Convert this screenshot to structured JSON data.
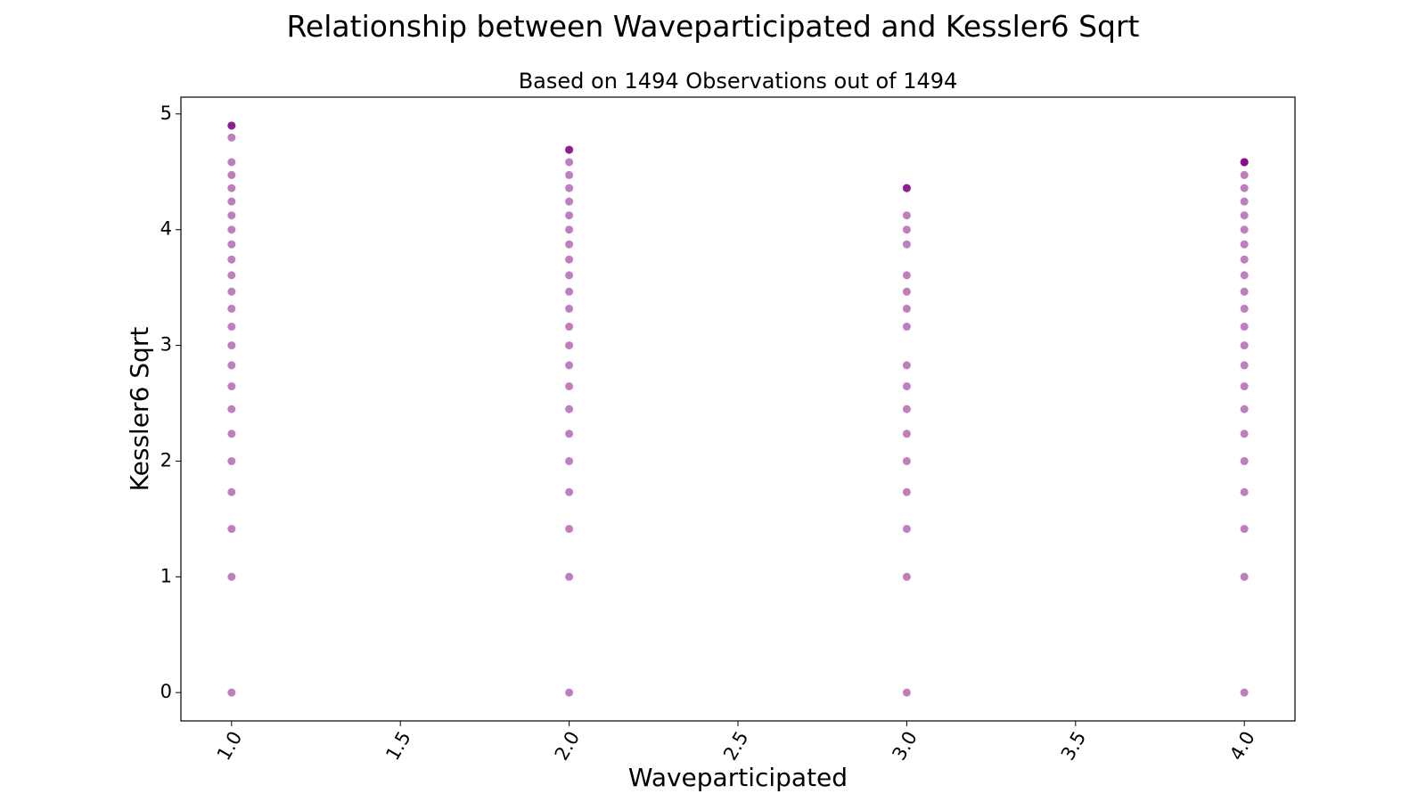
{
  "chart_data": {
    "type": "scatter",
    "title": "Relationship between Waveparticipated and Kessler6 Sqrt",
    "subtitle": "Based on 1494 Observations out of 1494",
    "xlabel": "Waveparticipated",
    "ylabel": "Kessler6 Sqrt",
    "xlim": [
      0.85,
      4.15
    ],
    "ylim": [
      -0.245,
      5.145
    ],
    "xticks": [
      "1.0",
      "1.5",
      "2.0",
      "2.5",
      "3.0",
      "3.5",
      "4.0"
    ],
    "yticks": [
      "0",
      "1",
      "2",
      "3",
      "4",
      "5"
    ],
    "grid": false,
    "point_color": "#800080",
    "series": [
      {
        "x": [
          1,
          1,
          1,
          1,
          1,
          1,
          1,
          1,
          1,
          1,
          1,
          1,
          1,
          1,
          1,
          1,
          1,
          1,
          1,
          1,
          1,
          1,
          1,
          1,
          1,
          1,
          2,
          2,
          2,
          2,
          2,
          2,
          2,
          2,
          2,
          2,
          2,
          2,
          2,
          2,
          2,
          2,
          2,
          2,
          2,
          2,
          2,
          2,
          2,
          2,
          2,
          3,
          3,
          3,
          3,
          3,
          3,
          3,
          3,
          3,
          3,
          3,
          3,
          3,
          3,
          3,
          3,
          3,
          3,
          3,
          4,
          4,
          4,
          4,
          4,
          4,
          4,
          4,
          4,
          4,
          4,
          4,
          4,
          4,
          4,
          4,
          4,
          4,
          4,
          4,
          4,
          4,
          4,
          4,
          4
        ],
        "y": [
          0,
          1,
          1.414,
          1.732,
          2,
          2.236,
          2.449,
          2.646,
          2.828,
          3,
          3.162,
          3.317,
          3.464,
          3.606,
          3.742,
          3.873,
          4,
          4.123,
          4.243,
          4.359,
          4.472,
          4.583,
          4.796,
          4.899,
          4.899,
          4.899,
          0,
          1,
          1.414,
          1.732,
          2,
          2.236,
          2.449,
          2.646,
          2.828,
          3,
          3.162,
          3.317,
          3.464,
          3.606,
          3.742,
          3.873,
          4,
          4.123,
          4.243,
          4.359,
          4.472,
          4.583,
          4.69,
          4.69,
          4.69,
          0,
          1,
          1.414,
          1.732,
          2,
          2.236,
          2.449,
          2.646,
          2.828,
          3.162,
          3.317,
          3.464,
          3.606,
          3.873,
          4,
          4.123,
          4.359,
          4.359,
          4.359,
          0,
          1,
          1.414,
          1.732,
          2,
          2.236,
          2.449,
          2.646,
          2.828,
          3,
          3.162,
          3.317,
          3.464,
          3.606,
          3.742,
          3.873,
          4,
          4.123,
          4.243,
          4.359,
          4.472,
          4.583,
          4.583,
          4.583,
          4.583
        ]
      }
    ]
  }
}
